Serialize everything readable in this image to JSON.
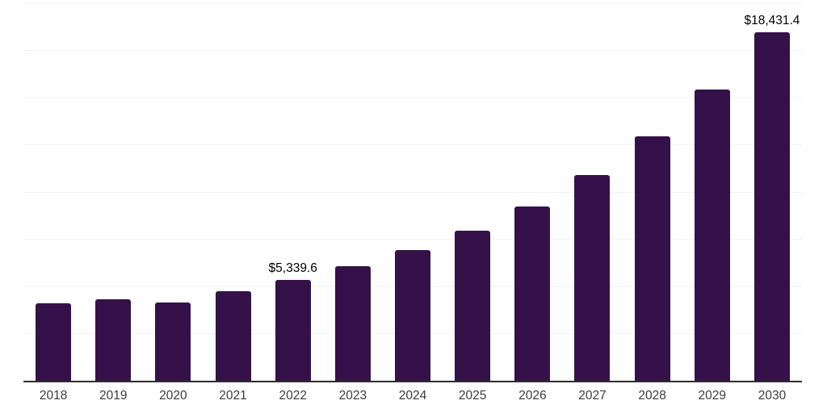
{
  "chart_data": {
    "type": "bar",
    "title": "",
    "xlabel": "",
    "ylabel": "",
    "categories": [
      "2018",
      "2019",
      "2020",
      "2021",
      "2022",
      "2023",
      "2024",
      "2025",
      "2026",
      "2027",
      "2028",
      "2029",
      "2030"
    ],
    "values": [
      4100,
      4310,
      4140,
      4750,
      5339.6,
      6040,
      6930,
      7930,
      9210,
      10870,
      12930,
      15400,
      18431.4
    ],
    "data_labels": [
      "",
      "",
      "",
      "",
      "$5,339.6",
      "",
      "",
      "",
      "",
      "",
      "",
      "",
      "$18,431.4"
    ],
    "ylim": [
      0,
      20000
    ],
    "gridline_values": [
      2500,
      5000,
      7500,
      10000,
      12500,
      15000,
      17500,
      20000
    ],
    "grid": "horizontal",
    "y_axis_labels_shown": false,
    "legend_position": "none"
  },
  "colors": {
    "bar": "#341249",
    "axis_line": "#2e2e2e",
    "gridline": "#f1f1f2",
    "data_label_text": "#000000",
    "tick_label_text": "#3c3c3c",
    "background": "#ffffff"
  }
}
